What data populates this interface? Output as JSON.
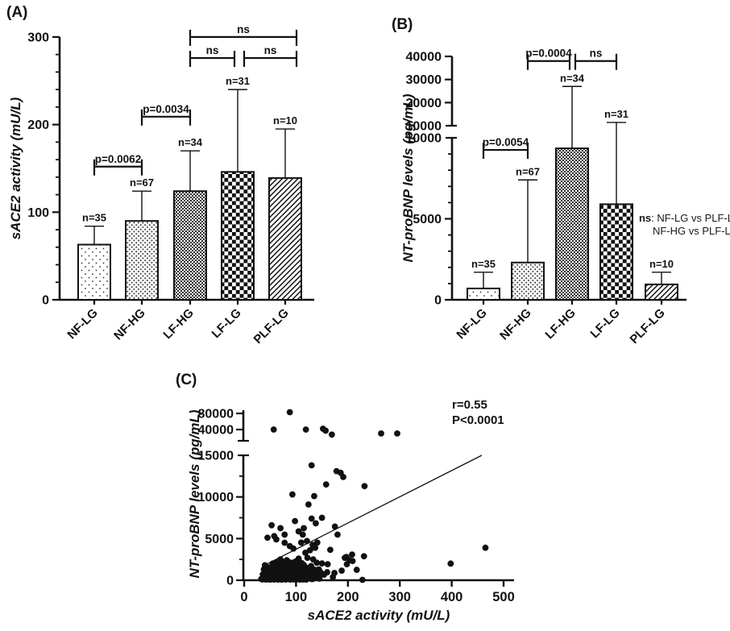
{
  "figure": {
    "background": "#ffffff",
    "ink": "#111111"
  },
  "chart_data": [
    {
      "id": "A",
      "type": "bar",
      "panel_label": "(A)",
      "ylabel": "sACE2 activity (mU/L)",
      "ylim": [
        0,
        300
      ],
      "yticks": [
        0,
        100,
        200,
        300
      ],
      "minor_tick_step": 20,
      "categories": [
        "NF-LG",
        "NF-HG",
        "LF-HG",
        "LF-LG",
        "PLF-LG"
      ],
      "values": [
        63,
        90,
        124,
        146,
        139
      ],
      "error_top": [
        84,
        124,
        170,
        240,
        195
      ],
      "n_labels": [
        "n=35",
        "n=67",
        "n=34",
        "n=31",
        "n=10"
      ],
      "patterns": [
        "sparse-dots",
        "dense-dots",
        "fine-checker",
        "checkerboard",
        "diagonal-stripes"
      ],
      "comparisons": [
        {
          "a": 0,
          "b": 1,
          "label": "p=0.0062",
          "y": 152
        },
        {
          "a": 1,
          "b": 2,
          "label": "p=0.0034",
          "y": 209
        },
        {
          "a": 2,
          "b": 3,
          "label": "ns",
          "y": 276,
          "x2off": -4
        },
        {
          "a": 3,
          "b": 4,
          "label": "ns",
          "y": 276,
          "x1off": 8,
          "x2off": 14
        },
        {
          "a": 2,
          "b": 4,
          "label": "ns",
          "y": 300,
          "x2off": 14
        }
      ]
    },
    {
      "id": "B",
      "type": "bar",
      "panel_label": "(B)",
      "ylabel": "NT-proBNP levels (pg/mL)",
      "broken_axis": {
        "lower_range": [
          0,
          10000
        ],
        "upper_range": [
          10000,
          40000
        ],
        "lower_ticks": [
          0,
          5000,
          10000
        ],
        "lower_minor_step": 1000,
        "upper_ticks": [
          10000,
          20000,
          30000,
          40000
        ]
      },
      "categories": [
        "NF-LG",
        "NF-HG",
        "LF-HG",
        "LF-LG",
        "PLF-LG"
      ],
      "values": [
        700,
        2300,
        9350,
        5900,
        950
      ],
      "error_top": [
        1700,
        7400,
        27000,
        11400,
        1700
      ],
      "n_labels": [
        "n=35",
        "n=67",
        "n=34",
        "n=31",
        "n=10"
      ],
      "patterns": [
        "sparse-dots",
        "dense-dots",
        "fine-checker",
        "checkerboard",
        "diagonal-stripes"
      ],
      "comparisons": [
        {
          "a": 0,
          "b": 1,
          "label": "p=0.0054",
          "y": 9250
        },
        {
          "a": 1,
          "b": 2,
          "label": "p=0.0004",
          "y": 38000,
          "x2off": -3
        },
        {
          "a": 2,
          "b": 3,
          "label": "ns",
          "y": 38000,
          "x1off": 4
        }
      ],
      "note": {
        "bold": "ns",
        "line1": ": NF-LG vs PLF-LG",
        "line2": "NF-HG vs PLF-LG"
      }
    },
    {
      "id": "C",
      "type": "scatter",
      "panel_label": "(C)",
      "xlabel": "sACE2 activity (mU/L)",
      "ylabel": "NT-proBNP levels (pg/mL)",
      "xlim": [
        0,
        500
      ],
      "xticks": [
        0,
        100,
        200,
        300,
        400,
        500
      ],
      "broken_axis": {
        "lower_ticks": [
          0,
          5000,
          10000,
          15000
        ],
        "lower_minor_step": 2500,
        "upper_ticks": [
          40000,
          80000
        ]
      },
      "annotation": {
        "r": "r=0.55",
        "p": "P<0.0001"
      },
      "trend_line": {
        "x1": 39,
        "y1": 1800,
        "x2": 458,
        "y2": 15000
      },
      "points": [
        [
          57,
          40000
        ],
        [
          88,
          83000
        ],
        [
          119,
          40000
        ],
        [
          152,
          42000
        ],
        [
          157,
          38000
        ],
        [
          169,
          31000
        ],
        [
          264,
          33000
        ],
        [
          295,
          33000
        ],
        [
          130,
          13800
        ],
        [
          178,
          13100
        ],
        [
          186,
          12900
        ],
        [
          191,
          12400
        ],
        [
          158,
          11500
        ],
        [
          232,
          11300
        ],
        [
          93,
          10300
        ],
        [
          135,
          10100
        ],
        [
          124,
          9100
        ],
        [
          45,
          5100
        ],
        [
          53,
          6600
        ],
        [
          58,
          5300
        ],
        [
          62,
          4900
        ],
        [
          70,
          6250
        ],
        [
          78,
          5480
        ],
        [
          98,
          7100
        ],
        [
          105,
          5870
        ],
        [
          113,
          5480
        ],
        [
          115,
          6250
        ],
        [
          130,
          7400
        ],
        [
          138,
          6830
        ],
        [
          150,
          7500
        ],
        [
          175,
          6440
        ],
        [
          180,
          5480
        ],
        [
          78,
          4500
        ],
        [
          88,
          4100
        ],
        [
          95,
          3800
        ],
        [
          110,
          4520
        ],
        [
          121,
          4710
        ],
        [
          127,
          3600
        ],
        [
          132,
          4230
        ],
        [
          137,
          3900
        ],
        [
          141,
          4520
        ],
        [
          166,
          3650
        ],
        [
          118,
          3300
        ],
        [
          465,
          3900
        ],
        [
          70,
          2500
        ],
        [
          82,
          2400
        ],
        [
          99,
          2250
        ],
        [
          105,
          2600
        ],
        [
          111,
          2050
        ],
        [
          122,
          2700
        ],
        [
          133,
          2500
        ],
        [
          140,
          2100
        ],
        [
          150,
          2020
        ],
        [
          161,
          1920
        ],
        [
          194,
          2690
        ],
        [
          197,
          2790
        ],
        [
          198,
          1920
        ],
        [
          203,
          2400
        ],
        [
          208,
          3080
        ],
        [
          209,
          2310
        ],
        [
          231,
          2880
        ],
        [
          398,
          2000
        ],
        [
          40,
          1800
        ],
        [
          47,
          1550
        ],
        [
          52,
          1500
        ],
        [
          55,
          2000
        ],
        [
          58,
          1650
        ],
        [
          61,
          1400
        ],
        [
          63,
          2100
        ],
        [
          66,
          1500
        ],
        [
          69,
          1850
        ],
        [
          72,
          1600
        ],
        [
          75,
          2200
        ],
        [
          76,
          1350
        ],
        [
          80,
          1700
        ],
        [
          83,
          2350
        ],
        [
          85,
          1550
        ],
        [
          88,
          1900
        ],
        [
          91,
          2100
        ],
        [
          94,
          1450
        ],
        [
          95,
          1800
        ],
        [
          103,
          1950
        ],
        [
          108,
          1750
        ],
        [
          112,
          1400
        ],
        [
          115,
          1850
        ],
        [
          117,
          1100
        ],
        [
          120,
          1500
        ],
        [
          125,
          1300
        ],
        [
          129,
          1700
        ],
        [
          131,
          1050
        ],
        [
          135,
          1250
        ],
        [
          139,
          800
        ],
        [
          144,
          1300
        ],
        [
          148,
          900
        ],
        [
          154,
          670
        ],
        [
          160,
          960
        ],
        [
          174,
          870
        ],
        [
          188,
          1150
        ],
        [
          217,
          1250
        ],
        [
          36,
          700
        ],
        [
          38,
          300
        ],
        [
          38,
          1300
        ],
        [
          41,
          600
        ],
        [
          43,
          1300
        ],
        [
          44,
          900
        ],
        [
          45,
          1000
        ],
        [
          46,
          400
        ],
        [
          48,
          650
        ],
        [
          50,
          300
        ],
        [
          50,
          1200
        ],
        [
          53,
          500
        ],
        [
          54,
          950
        ],
        [
          56,
          600
        ],
        [
          57,
          1100
        ],
        [
          60,
          350
        ],
        [
          60,
          900
        ],
        [
          64,
          550
        ],
        [
          65,
          1000
        ],
        [
          67,
          250
        ],
        [
          68,
          800
        ],
        [
          70,
          1250
        ],
        [
          71,
          450
        ],
        [
          74,
          950
        ],
        [
          75,
          300
        ],
        [
          77,
          600
        ],
        [
          79,
          1000
        ],
        [
          81,
          400
        ],
        [
          82,
          1250
        ],
        [
          84,
          700
        ],
        [
          86,
          950
        ],
        [
          87,
          300
        ],
        [
          90,
          1150
        ],
        [
          90,
          500
        ],
        [
          92,
          750
        ],
        [
          93,
          250
        ],
        [
          96,
          550
        ],
        [
          97,
          1050
        ],
        [
          100,
          1350
        ],
        [
          101,
          650
        ],
        [
          103,
          200
        ],
        [
          104,
          1000
        ],
        [
          105,
          400
        ],
        [
          106,
          1250
        ],
        [
          109,
          550
        ],
        [
          110,
          950
        ],
        [
          110,
          300
        ],
        [
          114,
          700
        ],
        [
          116,
          250
        ],
        [
          119,
          500
        ],
        [
          123,
          900
        ],
        [
          124,
          300
        ],
        [
          128,
          600
        ],
        [
          130,
          150
        ],
        [
          134,
          450
        ],
        [
          136,
          1250
        ],
        [
          138,
          480
        ],
        [
          142,
          700
        ],
        [
          145,
          200
        ],
        [
          171,
          380
        ],
        [
          33,
          150
        ],
        [
          35,
          100
        ],
        [
          40,
          150
        ],
        [
          42,
          80
        ],
        [
          45,
          200
        ],
        [
          48,
          100
        ],
        [
          51,
          80
        ],
        [
          55,
          150
        ],
        [
          58,
          80
        ],
        [
          62,
          150
        ],
        [
          65,
          80
        ],
        [
          70,
          100
        ],
        [
          73,
          80
        ],
        [
          78,
          150
        ],
        [
          80,
          80
        ],
        [
          85,
          150
        ],
        [
          89,
          80
        ],
        [
          95,
          100
        ],
        [
          100,
          80
        ],
        [
          107,
          80
        ],
        [
          113,
          100
        ],
        [
          115,
          100
        ],
        [
          120,
          80
        ],
        [
          132,
          150
        ],
        [
          228,
          50
        ]
      ]
    }
  ]
}
